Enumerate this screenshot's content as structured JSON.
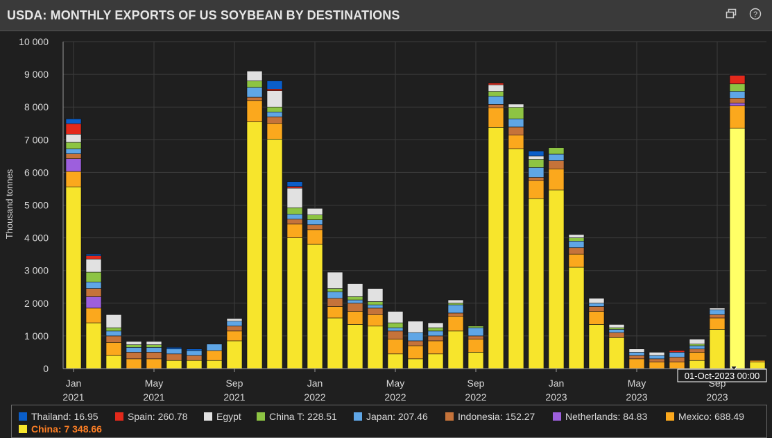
{
  "header": {
    "title": "USDA: MONTHLY EXPORTS OF US SOYBEAN BY DESTINATIONS",
    "popout_icon": "popout-icon",
    "help_icon": "help-icon"
  },
  "chart_data": {
    "type": "bar",
    "stacked": true,
    "title": "USDA: MONTHLY EXPORTS OF US SOYBEAN BY DESTINATIONS",
    "ylabel": "Thousand tonnes",
    "ylim": [
      0,
      10000
    ],
    "yticks": [
      "10 000",
      "9 000",
      "8 000",
      "7 000",
      "6 000",
      "5 000",
      "4 000",
      "3 000",
      "2 000",
      "1 000",
      "0"
    ],
    "xtick_labels": [
      {
        "month": "Jan",
        "year": "2021",
        "index": 0
      },
      {
        "month": "May",
        "year": "2021",
        "index": 4
      },
      {
        "month": "Sep",
        "year": "2021",
        "index": 8
      },
      {
        "month": "Jan",
        "year": "2022",
        "index": 12
      },
      {
        "month": "May",
        "year": "2022",
        "index": 16
      },
      {
        "month": "Sep",
        "year": "2022",
        "index": 20
      },
      {
        "month": "Jan",
        "year": "2023",
        "index": 24
      },
      {
        "month": "May",
        "year": "2023",
        "index": 28
      },
      {
        "month": "Sep",
        "year": "2023",
        "index": 32
      }
    ],
    "categories": [
      "2021-01",
      "2021-02",
      "2021-03",
      "2021-04",
      "2021-05",
      "2021-06",
      "2021-07",
      "2021-08",
      "2021-09",
      "2021-10",
      "2021-11",
      "2021-12",
      "2022-01",
      "2022-02",
      "2022-03",
      "2022-04",
      "2022-05",
      "2022-06",
      "2022-07",
      "2022-08",
      "2022-09",
      "2022-10",
      "2022-11",
      "2022-12",
      "2023-01",
      "2023-02",
      "2023-03",
      "2023-04",
      "2023-05",
      "2023-06",
      "2023-07",
      "2023-08",
      "2023-09",
      "2023-10",
      "2023-11"
    ],
    "series": [
      {
        "name": "China",
        "color": "#f7e52c",
        "values": [
          5560,
          1400,
          400,
          0,
          0,
          250,
          250,
          250,
          850,
          7550,
          7020,
          4000,
          3800,
          1550,
          1350,
          1300,
          450,
          300,
          450,
          1150,
          500,
          7380,
          6720,
          5200,
          5460,
          3100,
          1350,
          950,
          0,
          0,
          0,
          250,
          1200,
          7349,
          200
        ]
      },
      {
        "name": "Mexico",
        "color": "#fba81d",
        "values": [
          470,
          450,
          400,
          300,
          300,
          0,
          0,
          300,
          300,
          650,
          480,
          420,
          450,
          350,
          400,
          350,
          450,
          400,
          400,
          450,
          400,
          600,
          420,
          550,
          650,
          400,
          400,
          0,
          300,
          200,
          200,
          250,
          350,
          688,
          50
        ]
      },
      {
        "name": "Netherlands",
        "color": "#9d5fdd",
        "values": [
          390,
          350,
          0,
          0,
          0,
          0,
          0,
          0,
          0,
          0,
          0,
          0,
          0,
          0,
          0,
          0,
          0,
          0,
          0,
          0,
          0,
          0,
          0,
          0,
          0,
          0,
          0,
          0,
          0,
          0,
          0,
          0,
          0,
          85,
          0
        ]
      },
      {
        "name": "Indonesia",
        "color": "#c5733a",
        "values": [
          150,
          250,
          200,
          200,
          200,
          200,
          150,
          0,
          150,
          100,
          200,
          150,
          150,
          250,
          250,
          200,
          250,
          150,
          150,
          100,
          100,
          100,
          250,
          100,
          250,
          200,
          150,
          150,
          100,
          100,
          150,
          100,
          100,
          152,
          0
        ]
      },
      {
        "name": "Japan",
        "color": "#5fa6e6",
        "values": [
          150,
          200,
          150,
          150,
          150,
          150,
          150,
          200,
          150,
          300,
          150,
          150,
          150,
          200,
          100,
          100,
          100,
          250,
          150,
          250,
          250,
          250,
          250,
          300,
          200,
          200,
          100,
          100,
          100,
          100,
          150,
          100,
          150,
          207,
          0
        ]
      },
      {
        "name": "China T",
        "color": "#8dc443",
        "values": [
          200,
          300,
          100,
          80,
          80,
          0,
          0,
          0,
          0,
          200,
          150,
          200,
          150,
          100,
          100,
          100,
          150,
          0,
          100,
          50,
          50,
          150,
          350,
          250,
          200,
          100,
          0,
          50,
          0,
          0,
          0,
          50,
          0,
          229,
          0
        ]
      },
      {
        "name": "Egypt",
        "color": "#e1e1e1",
        "values": [
          250,
          400,
          400,
          100,
          100,
          0,
          0,
          0,
          80,
          300,
          500,
          600,
          200,
          500,
          400,
          400,
          350,
          350,
          150,
          100,
          0,
          200,
          100,
          100,
          0,
          100,
          150,
          100,
          100,
          100,
          0,
          150,
          50,
          0,
          0
        ]
      },
      {
        "name": "Spain",
        "color": "#e3291b",
        "values": [
          320,
          100,
          0,
          0,
          0,
          0,
          0,
          0,
          0,
          0,
          50,
          50,
          0,
          0,
          0,
          0,
          0,
          0,
          0,
          0,
          0,
          50,
          0,
          0,
          0,
          0,
          0,
          0,
          0,
          0,
          50,
          0,
          0,
          261,
          0
        ]
      },
      {
        "name": "Thailand",
        "color": "#0a5ec9",
        "values": [
          150,
          50,
          0,
          0,
          0,
          50,
          50,
          0,
          0,
          0,
          250,
          150,
          0,
          0,
          0,
          0,
          0,
          0,
          0,
          0,
          0,
          0,
          0,
          150,
          0,
          0,
          0,
          0,
          0,
          0,
          0,
          0,
          0,
          17,
          0
        ]
      }
    ],
    "highlighted_index": 33,
    "tooltip": "01-Oct-2023 00:00"
  },
  "legend": {
    "items": [
      {
        "label": "Thailand: 16.95",
        "color": "#0a5ec9"
      },
      {
        "label": "Spain: 260.78",
        "color": "#e3291b"
      },
      {
        "label": "Egypt",
        "color": "#e1e1e1"
      },
      {
        "label": "China T: 228.51",
        "color": "#8dc443"
      },
      {
        "label": "Japan: 207.46",
        "color": "#5fa6e6"
      },
      {
        "label": "Indonesia: 152.27",
        "color": "#c5733a"
      },
      {
        "label": "Netherlands: 84.83",
        "color": "#9d5fdd"
      },
      {
        "label": "Mexico: 688.49",
        "color": "#fba81d"
      },
      {
        "label": "China: 7 348.66",
        "color": "#f7e52c"
      }
    ]
  }
}
